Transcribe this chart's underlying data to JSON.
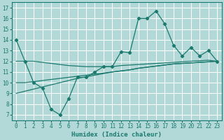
{
  "xlabel": "Humidex (Indice chaleur)",
  "background_color": "#b2d8d8",
  "grid_color": "#ffffff",
  "line_color": "#1a7a6e",
  "xlim": [
    -0.5,
    23.5
  ],
  "ylim": [
    6.5,
    17.5
  ],
  "xticks": [
    0,
    1,
    2,
    3,
    4,
    5,
    6,
    7,
    8,
    9,
    10,
    11,
    12,
    13,
    14,
    15,
    16,
    17,
    18,
    19,
    20,
    21,
    22,
    23
  ],
  "yticks": [
    7,
    8,
    9,
    10,
    11,
    12,
    13,
    14,
    15,
    16,
    17
  ],
  "main_series": [
    14,
    12,
    10,
    9.5,
    7.5,
    7,
    8.5,
    10.5,
    10.5,
    11,
    11.5,
    11.5,
    12.9,
    12.8,
    16,
    16,
    16.7,
    15.5,
    13.5,
    12.5,
    13.3,
    12.5,
    13,
    12
  ],
  "reg1": [
    12,
    12,
    12,
    11.9,
    11.8,
    11.7,
    11.6,
    11.55,
    11.5,
    11.5,
    11.5,
    11.5,
    11.6,
    11.65,
    11.7,
    11.75,
    11.8,
    11.85,
    11.9,
    11.95,
    12.0,
    12.05,
    12.1,
    12.0
  ],
  "reg2": [
    10,
    10,
    10.1,
    10.2,
    10.3,
    10.4,
    10.5,
    10.6,
    10.7,
    10.8,
    10.9,
    11.0,
    11.1,
    11.2,
    11.35,
    11.45,
    11.55,
    11.65,
    11.75,
    11.8,
    11.85,
    11.9,
    11.95,
    12.0
  ],
  "reg3": [
    9.0,
    9.2,
    9.4,
    9.6,
    9.8,
    10.0,
    10.2,
    10.4,
    10.55,
    10.7,
    10.85,
    11.0,
    11.1,
    11.2,
    11.35,
    11.45,
    11.55,
    11.65,
    11.75,
    11.8,
    11.85,
    11.9,
    11.95,
    12.0
  ]
}
